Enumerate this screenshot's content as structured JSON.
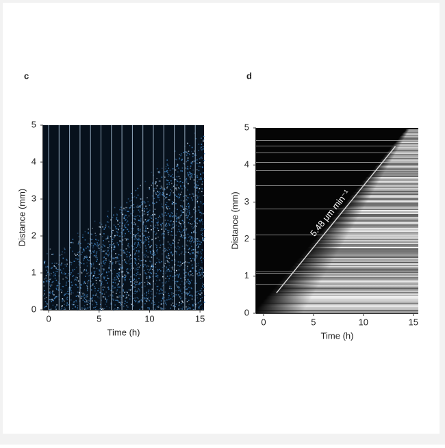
{
  "chart_data": [
    {
      "type": "kymograph",
      "panel_label": "c",
      "xlabel": "Time (h)",
      "ylabel": "Distance (mm)",
      "xlim": [
        -0.55,
        15.4
      ],
      "xticks": [
        0,
        5,
        10,
        15
      ],
      "ylim": [
        0,
        5
      ],
      "yticks": [
        0,
        1,
        2,
        3,
        4,
        5
      ]
    },
    {
      "type": "kymograph",
      "panel_label": "d",
      "xlabel": "Time (h)",
      "ylabel": "Distance (mm)",
      "xlim": [
        -0.75,
        15.5
      ],
      "xticks": [
        0,
        5,
        10,
        15
      ],
      "ylim": [
        0,
        5
      ],
      "yticks": [
        0,
        1,
        2,
        3,
        4,
        5
      ],
      "annotation": {
        "text": "5.48 μm min⁻¹",
        "x": [
          1.3,
          13.2
        ],
        "y": [
          0.55,
          4.5
        ]
      }
    }
  ]
}
